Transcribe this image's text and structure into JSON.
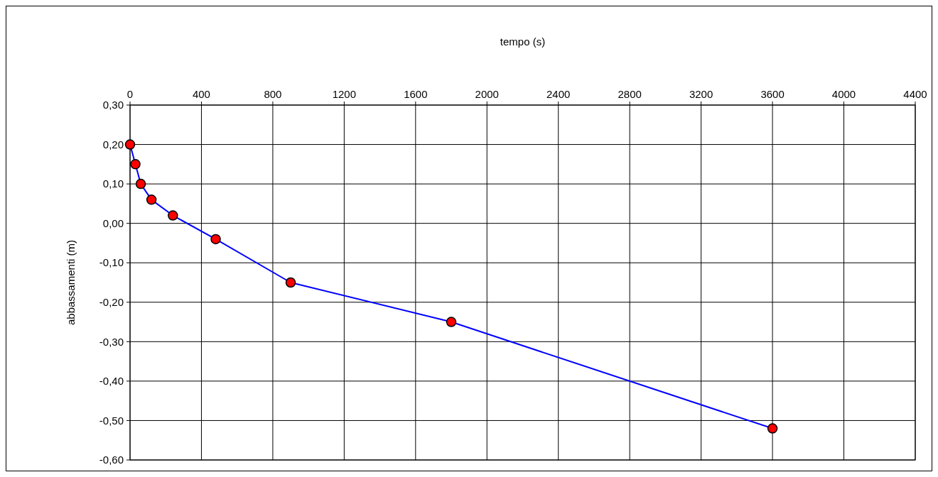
{
  "chart_data": {
    "type": "line",
    "xlabel": "tempo (s)",
    "ylabel": "abbassamenti (m)",
    "x": [
      0,
      30,
      60,
      120,
      240,
      480,
      900,
      1800,
      3600
    ],
    "series": [
      {
        "color": "#0000ff",
        "colors": [
          "#ff0000",
          "#ff0000",
          "#ff0000",
          "#ff0000",
          "#ff0000",
          "#ff0000",
          "#ff0000",
          "#ff0000",
          "#ff0000"
        ],
        "values": [
          0.2,
          0.15,
          0.1,
          0.06,
          0.02,
          -0.04,
          -0.15,
          -0.25,
          -0.52
        ]
      }
    ],
    "xlim": [
      0,
      4400
    ],
    "xticks": [
      0,
      400,
      800,
      1200,
      1600,
      2000,
      2400,
      2800,
      3200,
      3600,
      4000,
      4400
    ],
    "ylim": [
      -0.6,
      0.3
    ],
    "yticks": [
      {
        "value": 0.3,
        "label": "0,30"
      },
      {
        "value": 0.2,
        "label": "0,20"
      },
      {
        "value": 0.1,
        "label": "0,10"
      },
      {
        "value": 0,
        "label": "0,00"
      },
      {
        "value": -0.1,
        "label": "-0,10"
      },
      {
        "value": -0.2,
        "label": "-0,20"
      },
      {
        "value": -0.3,
        "label": "-0,30"
      },
      {
        "value": -0.4,
        "label": "-0,40"
      },
      {
        "value": -0.5,
        "label": "-0,50"
      },
      {
        "value": -0.6,
        "label": "-0,60"
      }
    ],
    "grid": true,
    "marker": "circle",
    "line_style": "solid"
  }
}
